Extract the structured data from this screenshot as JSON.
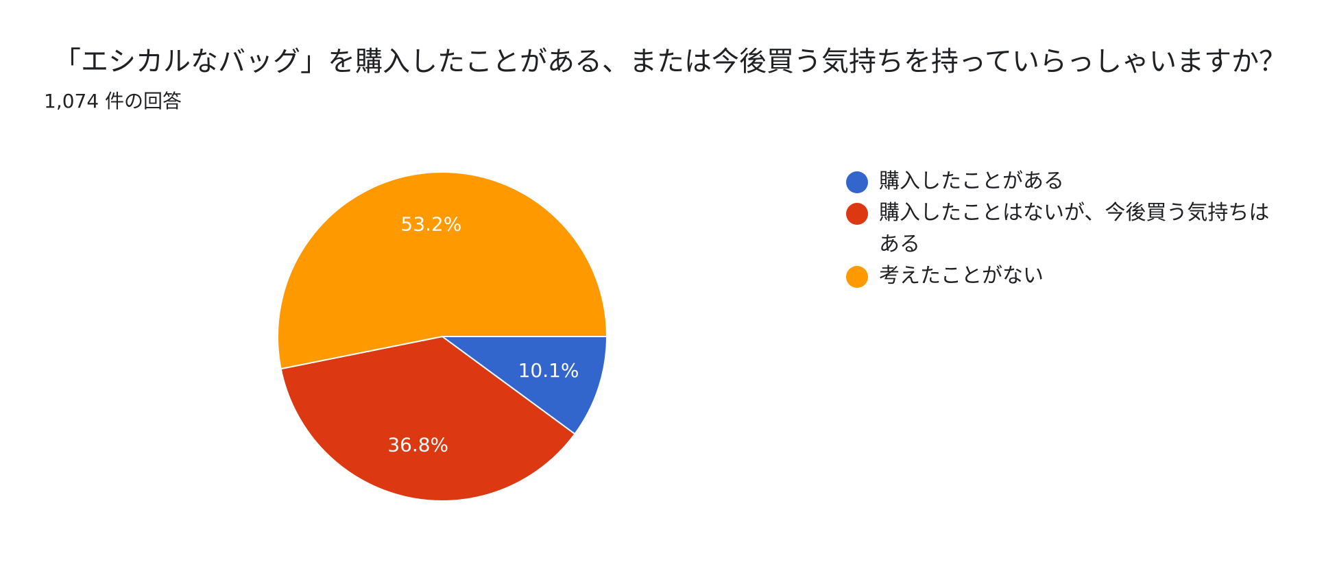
{
  "title": "「エシカルなバッグ」を購入したことがある、または今後買う気持ちを持っていらっしゃいますか？",
  "subtitle": "1,074 件の回答",
  "chart_data": {
    "type": "pie",
    "slices": [
      {
        "label": "購入したことがある",
        "value": 10.1,
        "value_label": "10.1%",
        "color": "#3366cc"
      },
      {
        "label": "購入したことはないが、今後買う気持ちはある",
        "value": 36.8,
        "value_label": "36.8%",
        "color": "#dc3912"
      },
      {
        "label": "考えたことがない",
        "value": 53.2,
        "value_label": "53.2%",
        "color": "#ff9900"
      }
    ],
    "legend_position": "right"
  }
}
